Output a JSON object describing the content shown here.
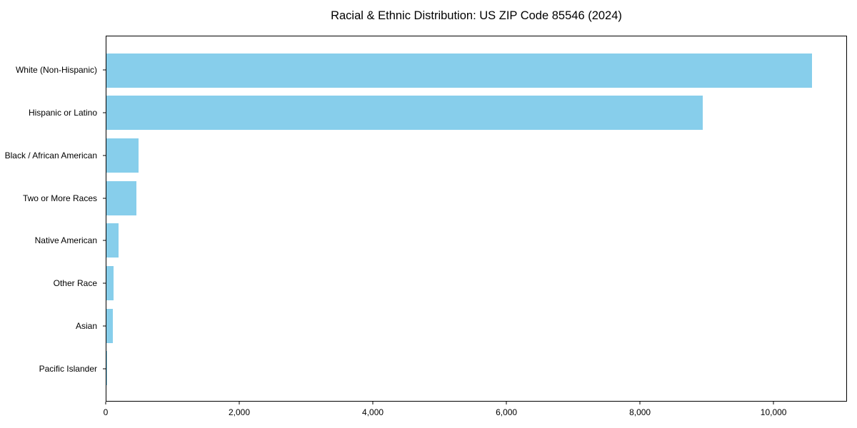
{
  "chart_data": {
    "type": "bar",
    "orientation": "horizontal",
    "title": "Racial & Ethnic Distribution: US ZIP Code 85546 (2024)",
    "categories": [
      "White (Non-Hispanic)",
      "Hispanic or Latino",
      "Black / African American",
      "Two or More Races",
      "Native American",
      "Other Race",
      "Asian",
      "Pacific Islander"
    ],
    "values": [
      10560,
      8930,
      480,
      450,
      185,
      110,
      95,
      10
    ],
    "xlabel": "",
    "ylabel": "",
    "xlim": [
      0,
      11100
    ],
    "x_ticks": [
      0,
      2000,
      4000,
      6000,
      8000,
      10000
    ],
    "x_tick_labels": [
      "0",
      "2,000",
      "4,000",
      "6,000",
      "8,000",
      "10,000"
    ],
    "bar_color": "#87CEEB",
    "background_color": "#ffffff",
    "spine_color": "#000000",
    "grid": false,
    "legend": null
  }
}
